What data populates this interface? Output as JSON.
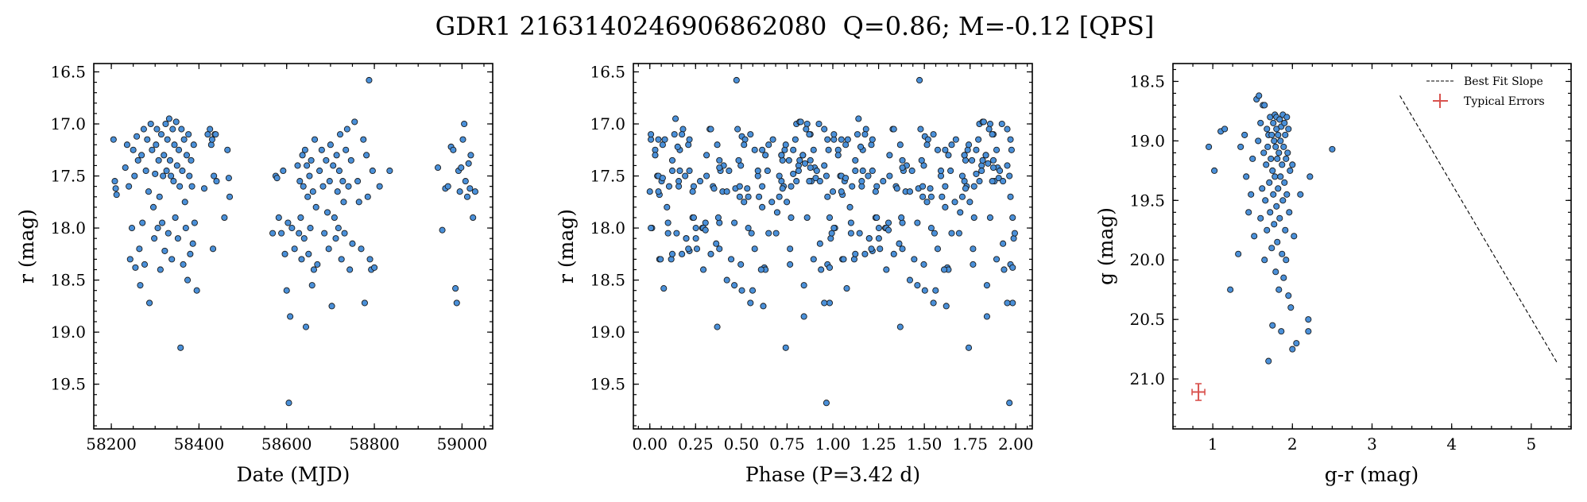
{
  "figure_title": "GDR1 2163140246906862080  Q=0.86; M=-0.12 [QPS]",
  "colors": {
    "marker_face": "#4a90d9",
    "marker_edge": "#1a1a1a",
    "error_bar": "#d9534f",
    "fit_line": "#000000"
  },
  "chart_data": [
    {
      "type": "scatter",
      "xlabel": "Date (MJD)",
      "ylabel": "r (mag)",
      "xlim": [
        58160,
        59070
      ],
      "ylim": [
        19.93,
        16.42
      ],
      "y_inverted": true,
      "xticks": [
        58200,
        58400,
        58600,
        58800,
        59000
      ],
      "yticks": [
        16.5,
        17.0,
        17.5,
        18.0,
        18.5,
        19.0,
        19.5
      ],
      "points": [
        [
          58205,
          17.15
        ],
        [
          58208,
          17.55
        ],
        [
          58210,
          17.62
        ],
        [
          58212,
          17.68
        ],
        [
          58232,
          17.42
        ],
        [
          58236,
          17.2
        ],
        [
          58240,
          17.6
        ],
        [
          58243,
          18.3
        ],
        [
          58247,
          18.0
        ],
        [
          58250,
          17.25
        ],
        [
          58253,
          17.5
        ],
        [
          58255,
          18.38
        ],
        [
          58258,
          17.12
        ],
        [
          58261,
          17.35
        ],
        [
          58264,
          18.2
        ],
        [
          58266,
          18.55
        ],
        [
          58269,
          17.3
        ],
        [
          58271,
          17.95
        ],
        [
          58274,
          17.05
        ],
        [
          58276,
          18.35
        ],
        [
          58279,
          17.45
        ],
        [
          58282,
          17.15
        ],
        [
          58285,
          17.65
        ],
        [
          58287,
          18.72
        ],
        [
          58290,
          17.0
        ],
        [
          58293,
          17.25
        ],
        [
          58296,
          17.8
        ],
        [
          58298,
          18.1
        ],
        [
          58300,
          17.48
        ],
        [
          58302,
          17.2
        ],
        [
          58304,
          17.05
        ],
        [
          58306,
          18.0
        ],
        [
          58308,
          17.35
        ],
        [
          58310,
          17.7
        ],
        [
          58312,
          18.4
        ],
        [
          58314,
          17.1
        ],
        [
          58316,
          17.95
        ],
        [
          58318,
          17.5
        ],
        [
          58320,
          17.3
        ],
        [
          58322,
          18.22
        ],
        [
          58324,
          17.0
        ],
        [
          58326,
          17.45
        ],
        [
          58328,
          17.15
        ],
        [
          58330,
          18.05
        ],
        [
          58332,
          16.95
        ],
        [
          58334,
          17.35
        ],
        [
          58336,
          17.5
        ],
        [
          58338,
          18.3
        ],
        [
          58340,
          17.05
        ],
        [
          58342,
          17.55
        ],
        [
          58344,
          17.2
        ],
        [
          58346,
          17.9
        ],
        [
          58348,
          16.98
        ],
        [
          58350,
          17.4
        ],
        [
          58352,
          18.1
        ],
        [
          58354,
          17.25
        ],
        [
          58356,
          17.6
        ],
        [
          58358,
          19.15
        ],
        [
          58360,
          17.05
        ],
        [
          58362,
          17.45
        ],
        [
          58364,
          18.35
        ],
        [
          58366,
          17.15
        ],
        [
          58368,
          17.75
        ],
        [
          58370,
          18.0
        ],
        [
          58372,
          17.3
        ],
        [
          58374,
          18.5
        ],
        [
          58376,
          17.1
        ],
        [
          58378,
          17.5
        ],
        [
          58380,
          18.25
        ],
        [
          58382,
          17.35
        ],
        [
          58384,
          17.6
        ],
        [
          58386,
          18.15
        ],
        [
          58388,
          17.2
        ],
        [
          58390,
          17.95
        ],
        [
          58395,
          18.6
        ],
        [
          58412,
          17.62
        ],
        [
          58420,
          17.1
        ],
        [
          58425,
          17.05
        ],
        [
          58428,
          17.2
        ],
        [
          58430,
          17.15
        ],
        [
          58432,
          18.2
        ],
        [
          58434,
          17.5
        ],
        [
          58436,
          17.1
        ],
        [
          58438,
          17.1
        ],
        [
          58440,
          17.55
        ],
        [
          58458,
          17.9
        ],
        [
          58465,
          17.25
        ],
        [
          58468,
          17.52
        ],
        [
          58470,
          17.7
        ],
        [
          58568,
          18.05
        ],
        [
          58575,
          17.5
        ],
        [
          58578,
          17.52
        ],
        [
          58582,
          17.9
        ],
        [
          58588,
          18.05
        ],
        [
          58592,
          17.45
        ],
        [
          58596,
          18.25
        ],
        [
          58600,
          18.6
        ],
        [
          58603,
          17.95
        ],
        [
          58605,
          19.68
        ],
        [
          58608,
          18.85
        ],
        [
          58612,
          18.0
        ],
        [
          58618,
          18.2
        ],
        [
          58625,
          17.4
        ],
        [
          58628,
          18.05
        ],
        [
          58630,
          17.55
        ],
        [
          58632,
          17.9
        ],
        [
          58634,
          18.3
        ],
        [
          58636,
          17.3
        ],
        [
          58638,
          17.6
        ],
        [
          58640,
          18.1
        ],
        [
          58642,
          17.25
        ],
        [
          58644,
          18.95
        ],
        [
          58646,
          17.4
        ],
        [
          58648,
          17.7
        ],
        [
          58650,
          18.25
        ],
        [
          58652,
          17.5
        ],
        [
          58654,
          18.0
        ],
        [
          58656,
          17.35
        ],
        [
          58658,
          18.55
        ],
        [
          58660,
          17.65
        ],
        [
          58662,
          18.4
        ],
        [
          58664,
          17.15
        ],
        [
          58667,
          17.8
        ],
        [
          58670,
          18.35
        ],
        [
          58675,
          17.45
        ],
        [
          58680,
          17.25
        ],
        [
          58683,
          17.6
        ],
        [
          58686,
          18.05
        ],
        [
          58690,
          17.35
        ],
        [
          58693,
          17.85
        ],
        [
          58696,
          18.2
        ],
        [
          58698,
          17.55
        ],
        [
          58700,
          17.2
        ],
        [
          58703,
          18.75
        ],
        [
          58706,
          17.4
        ],
        [
          58709,
          17.9
        ],
        [
          58712,
          18.1
        ],
        [
          58714,
          17.3
        ],
        [
          58716,
          17.65
        ],
        [
          58718,
          18.0
        ],
        [
          58720,
          17.45
        ],
        [
          58722,
          17.1
        ],
        [
          58725,
          18.3
        ],
        [
          58728,
          17.55
        ],
        [
          58730,
          17.75
        ],
        [
          58732,
          18.05
        ],
        [
          58735,
          17.25
        ],
        [
          58738,
          17.05
        ],
        [
          58741,
          17.6
        ],
        [
          58744,
          18.4
        ],
        [
          58747,
          17.35
        ],
        [
          58750,
          18.15
        ],
        [
          58755,
          16.98
        ],
        [
          58762,
          17.55
        ],
        [
          58765,
          17.75
        ],
        [
          58770,
          18.2
        ],
        [
          58775,
          17.15
        ],
        [
          58778,
          18.72
        ],
        [
          58782,
          17.3
        ],
        [
          58785,
          17.7
        ],
        [
          58788,
          16.58
        ],
        [
          58790,
          18.3
        ],
        [
          58793,
          18.4
        ],
        [
          58796,
          17.45
        ],
        [
          58800,
          18.38
        ],
        [
          58812,
          17.6
        ],
        [
          58835,
          17.45
        ],
        [
          58945,
          17.42
        ],
        [
          58955,
          18.02
        ],
        [
          58962,
          17.62
        ],
        [
          58968,
          17.6
        ],
        [
          58975,
          17.22
        ],
        [
          58980,
          17.25
        ],
        [
          58985,
          18.58
        ],
        [
          58988,
          18.72
        ],
        [
          58992,
          17.45
        ],
        [
          58995,
          17.65
        ],
        [
          58998,
          17.42
        ],
        [
          59002,
          17.15
        ],
        [
          59005,
          17.0
        ],
        [
          59008,
          17.55
        ],
        [
          59012,
          17.7
        ],
        [
          59015,
          17.38
        ],
        [
          59018,
          17.62
        ],
        [
          59020,
          17.3
        ],
        [
          59025,
          17.9
        ],
        [
          59030,
          17.65
        ]
      ]
    },
    {
      "type": "scatter",
      "xlabel": "Phase (P=3.42 d)",
      "ylabel": "r (mag)",
      "xlim": [
        -0.09,
        2.09
      ],
      "ylim": [
        19.93,
        16.42
      ],
      "y_inverted": true,
      "xticks": [
        0.0,
        0.25,
        0.5,
        0.75,
        1.0,
        1.25,
        1.5,
        1.75,
        2.0
      ],
      "xtick_labels": [
        "0.00",
        "0.25",
        "0.50",
        "0.75",
        "1.00",
        "1.25",
        "1.50",
        "1.75",
        "2.00"
      ],
      "yticks": [
        16.5,
        17.0,
        17.5,
        18.0,
        18.5,
        19.0,
        19.5
      ],
      "phase_folded": true
    },
    {
      "type": "scatter",
      "xlabel": "g-r (mag)",
      "ylabel": "g (mag)",
      "xlim": [
        0.5,
        5.5
      ],
      "ylim": [
        21.42,
        18.35
      ],
      "y_inverted": true,
      "xticks": [
        1,
        2,
        3,
        4,
        5
      ],
      "yticks": [
        18.5,
        19.0,
        19.5,
        20.0,
        20.5,
        21.0
      ],
      "legend": [
        "Best Fit Slope",
        "Typical Errors"
      ],
      "legend_position": "top-right",
      "fit_line": [
        [
          3.35,
          18.62
        ],
        [
          5.33,
          20.87
        ]
      ],
      "typical_error": {
        "x": 0.82,
        "y": 21.11,
        "xerr": 0.08,
        "yerr": 0.07
      },
      "points": [
        [
          0.95,
          19.05
        ],
        [
          1.02,
          19.25
        ],
        [
          1.1,
          18.92
        ],
        [
          1.15,
          18.9
        ],
        [
          1.22,
          20.25
        ],
        [
          1.32,
          19.95
        ],
        [
          1.35,
          19.05
        ],
        [
          1.4,
          18.95
        ],
        [
          1.42,
          19.3
        ],
        [
          1.45,
          19.6
        ],
        [
          1.48,
          19.45
        ],
        [
          1.5,
          19.15
        ],
        [
          1.52,
          19.8
        ],
        [
          1.55,
          18.65
        ],
        [
          1.57,
          19.0
        ],
        [
          1.58,
          18.62
        ],
        [
          1.6,
          19.65
        ],
        [
          1.6,
          18.85
        ],
        [
          1.62,
          19.4
        ],
        [
          1.63,
          18.7
        ],
        [
          1.64,
          19.1
        ],
        [
          1.65,
          20.0
        ],
        [
          1.65,
          18.7
        ],
        [
          1.66,
          19.5
        ],
        [
          1.67,
          19.2
        ],
        [
          1.68,
          18.9
        ],
        [
          1.68,
          19.75
        ],
        [
          1.69,
          19.05
        ],
        [
          1.7,
          18.95
        ],
        [
          1.7,
          20.85
        ],
        [
          1.71,
          19.35
        ],
        [
          1.72,
          19.6
        ],
        [
          1.72,
          18.8
        ],
        [
          1.73,
          19.15
        ],
        [
          1.74,
          19.9
        ],
        [
          1.74,
          18.95
        ],
        [
          1.75,
          19.25
        ],
        [
          1.75,
          20.55
        ],
        [
          1.76,
          19.45
        ],
        [
          1.76,
          18.85
        ],
        [
          1.77,
          19.7
        ],
        [
          1.77,
          19.0
        ],
        [
          1.78,
          18.78
        ],
        [
          1.78,
          19.3
        ],
        [
          1.79,
          20.1
        ],
        [
          1.79,
          19.05
        ],
        [
          1.8,
          18.9
        ],
        [
          1.8,
          19.55
        ],
        [
          1.8,
          18.8
        ],
        [
          1.81,
          19.15
        ],
        [
          1.81,
          19.85
        ],
        [
          1.82,
          18.95
        ],
        [
          1.82,
          19.4
        ],
        [
          1.83,
          20.25
        ],
        [
          1.83,
          19.1
        ],
        [
          1.84,
          18.82
        ],
        [
          1.84,
          19.65
        ],
        [
          1.85,
          19.0
        ],
        [
          1.85,
          19.3
        ],
        [
          1.86,
          18.88
        ],
        [
          1.86,
          20.6
        ],
        [
          1.87,
          19.2
        ],
        [
          1.87,
          19.95
        ],
        [
          1.88,
          18.78
        ],
        [
          1.88,
          19.5
        ],
        [
          1.89,
          19.05
        ],
        [
          1.89,
          20.15
        ],
        [
          1.9,
          18.85
        ],
        [
          1.9,
          19.35
        ],
        [
          1.91,
          19.75
        ],
        [
          1.91,
          18.95
        ],
        [
          1.92,
          19.15
        ],
        [
          1.92,
          20.0
        ],
        [
          1.93,
          18.8
        ],
        [
          1.93,
          19.45
        ],
        [
          1.94,
          19.1
        ],
        [
          1.95,
          18.9
        ],
        [
          1.95,
          20.3
        ],
        [
          1.96,
          19.6
        ],
        [
          1.97,
          19.25
        ],
        [
          1.98,
          20.4
        ],
        [
          2.0,
          19.2
        ],
        [
          2.0,
          20.75
        ],
        [
          2.02,
          19.8
        ],
        [
          2.05,
          20.7
        ],
        [
          2.1,
          19.45
        ],
        [
          2.2,
          20.5
        ],
        [
          2.2,
          20.6
        ],
        [
          2.22,
          19.3
        ],
        [
          2.5,
          19.07
        ]
      ]
    }
  ]
}
